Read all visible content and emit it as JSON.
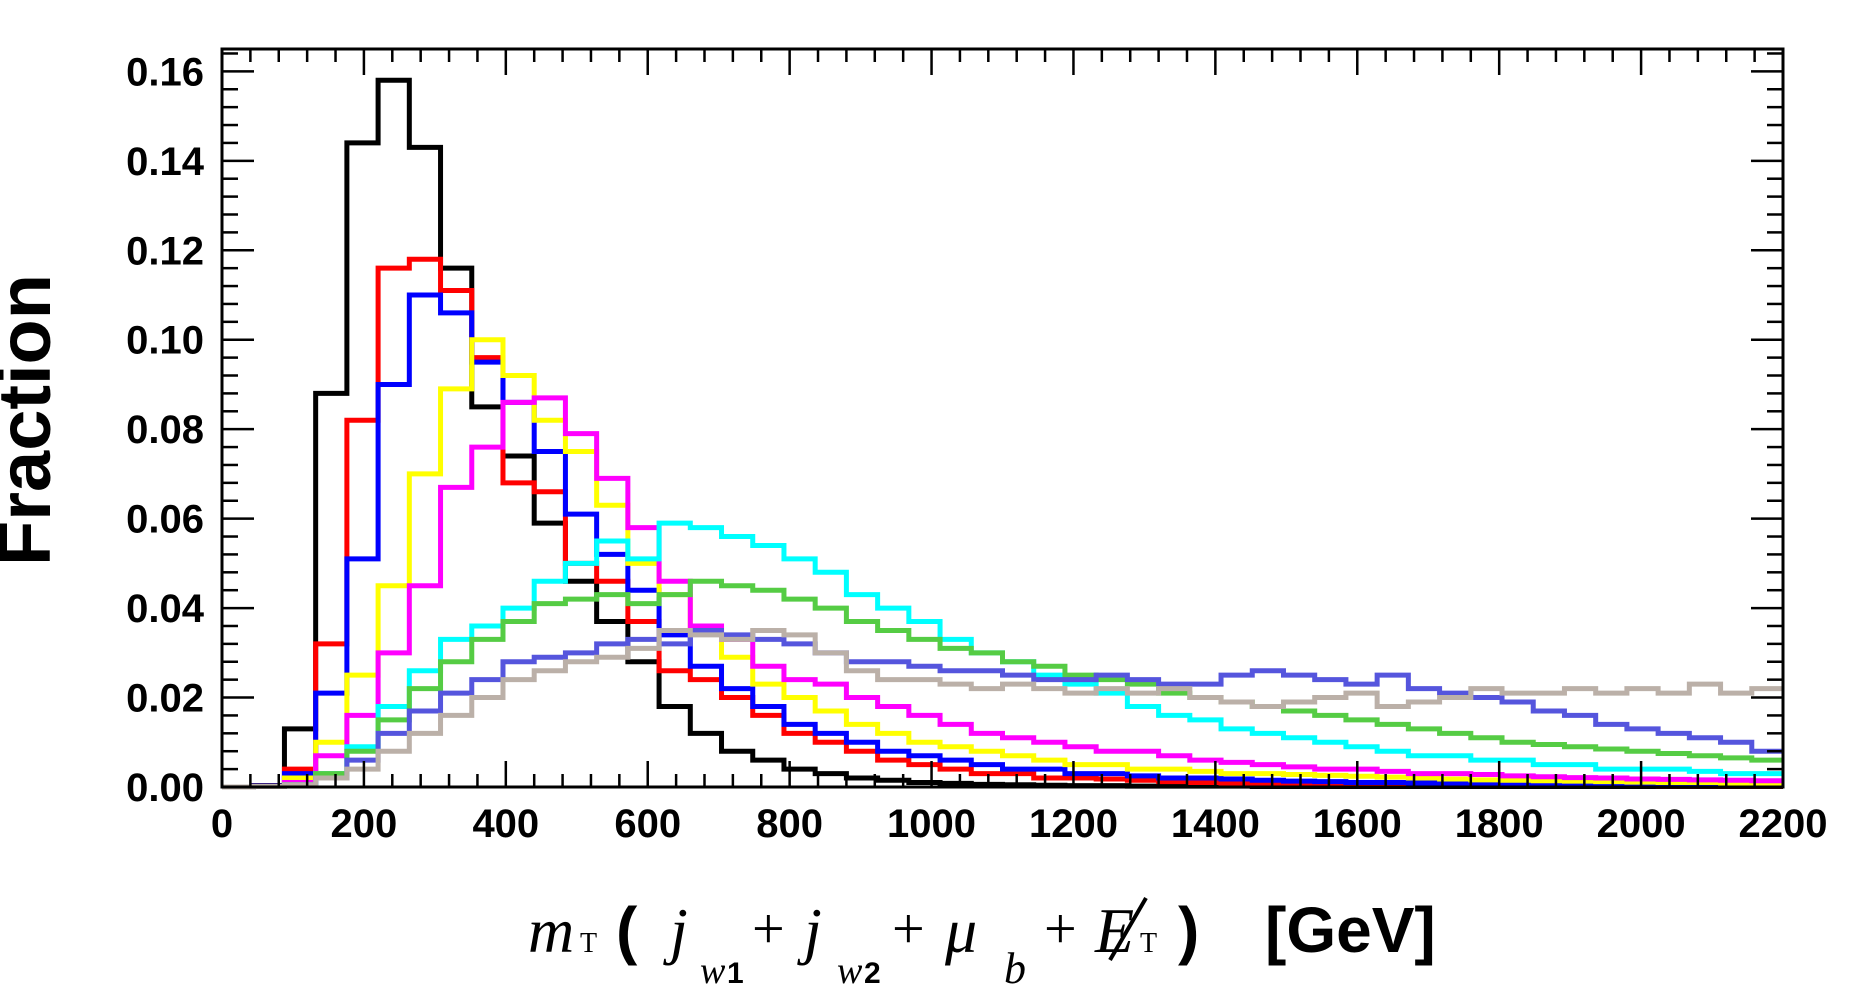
{
  "chart_data": {
    "type": "histogram-step",
    "title": "",
    "ylabel": "Fraction",
    "xlabel": {
      "full": "m_T ( j_w1 + j_w2 + μ_b + E̸_T ) [GeV]",
      "m": "m",
      "T1": "T",
      "paren_open": "(",
      "j1": "j",
      "w1": "w",
      "w1_num": "1",
      "plus1": "+",
      "j2": "j",
      "w2": "w",
      "w2_num": "2",
      "plus2": "+",
      "mu": "μ",
      "b": "b",
      "plus3": "+",
      "E": "E",
      "T2": "T",
      "paren_close": ")",
      "unit": "[GeV]"
    },
    "xlim": [
      0,
      2200
    ],
    "ylim": [
      0,
      0.165
    ],
    "x_ticks": [
      0,
      200,
      400,
      600,
      800,
      1000,
      1200,
      1400,
      1600,
      1800,
      2000,
      2200
    ],
    "x_tick_labels": [
      "0",
      "200",
      "400",
      "600",
      "800",
      "1000",
      "1200",
      "1400",
      "1600",
      "1800",
      "2000",
      "2200"
    ],
    "y_ticks": [
      0,
      0.02,
      0.04,
      0.06,
      0.08,
      0.1,
      0.12,
      0.14,
      0.16
    ],
    "y_tick_labels": [
      "0.00",
      "0.02",
      "0.04",
      "0.06",
      "0.08",
      "0.10",
      "0.12",
      "0.14",
      "0.16"
    ],
    "bin_edges_start": 0,
    "bin_width": 44,
    "series": [
      {
        "name": "black",
        "color": "#000000",
        "values": [
          0,
          0.0003,
          0.013,
          0.088,
          0.144,
          0.158,
          0.143,
          0.116,
          0.085,
          0.074,
          0.059,
          0.046,
          0.037,
          0.028,
          0.018,
          0.012,
          0.008,
          0.006,
          0.004,
          0.003,
          0.002,
          0.0015,
          0.001,
          0.0008,
          0.0006,
          0.0005,
          0.0004,
          0.0003,
          0.0003,
          0.0002,
          0.0002,
          0.0002,
          0.0002,
          0.0001,
          0.0001,
          0.0001,
          0.0001,
          0.0001,
          0.0001,
          0.0001,
          0.0001,
          0.0001,
          0.0001,
          0.0001,
          0.0001,
          0.0001,
          0.0001,
          0.0001,
          0.0001,
          0.0001
        ]
      },
      {
        "name": "red",
        "color": "#ff0000",
        "values": [
          0,
          0.0002,
          0.004,
          0.032,
          0.082,
          0.116,
          0.118,
          0.111,
          0.096,
          0.068,
          0.066,
          0.05,
          0.046,
          0.037,
          0.026,
          0.024,
          0.02,
          0.016,
          0.012,
          0.01,
          0.008,
          0.006,
          0.005,
          0.004,
          0.003,
          0.003,
          0.002,
          0.002,
          0.0018,
          0.0015,
          0.0012,
          0.001,
          0.0009,
          0.0008,
          0.0007,
          0.0006,
          0.0006,
          0.0005,
          0.0005,
          0.0004,
          0.0004,
          0.0004,
          0.0003,
          0.0003,
          0.0003,
          0.0003,
          0.0002,
          0.0002,
          0.0002,
          0.0002
        ]
      },
      {
        "name": "blue",
        "color": "#0000ff",
        "values": [
          0,
          0.0002,
          0.003,
          0.021,
          0.051,
          0.09,
          0.11,
          0.106,
          0.095,
          0.086,
          0.075,
          0.061,
          0.052,
          0.044,
          0.034,
          0.027,
          0.022,
          0.018,
          0.014,
          0.012,
          0.01,
          0.008,
          0.007,
          0.006,
          0.005,
          0.004,
          0.004,
          0.003,
          0.003,
          0.0025,
          0.002,
          0.002,
          0.0018,
          0.0015,
          0.0013,
          0.0012,
          0.001,
          0.001,
          0.0009,
          0.0008,
          0.0007,
          0.0007,
          0.0006,
          0.0006,
          0.0005,
          0.0005,
          0.0005,
          0.0004,
          0.0004,
          0.0004
        ]
      },
      {
        "name": "yellow",
        "color": "#ffff00",
        "values": [
          0,
          0.0001,
          0.002,
          0.01,
          0.025,
          0.045,
          0.07,
          0.089,
          0.1,
          0.092,
          0.082,
          0.075,
          0.063,
          0.05,
          0.043,
          0.036,
          0.029,
          0.023,
          0.02,
          0.017,
          0.014,
          0.012,
          0.01,
          0.009,
          0.008,
          0.007,
          0.006,
          0.005,
          0.005,
          0.004,
          0.004,
          0.0035,
          0.003,
          0.003,
          0.0028,
          0.0026,
          0.0024,
          0.0022,
          0.002,
          0.0018,
          0.0016,
          0.0015,
          0.0014,
          0.0013,
          0.0012,
          0.0011,
          0.001,
          0.001,
          0.0009,
          0.0009
        ]
      },
      {
        "name": "magenta",
        "color": "#ff00ff",
        "values": [
          0,
          0.0001,
          0.001,
          0.007,
          0.016,
          0.03,
          0.045,
          0.067,
          0.076,
          0.086,
          0.087,
          0.079,
          0.069,
          0.058,
          0.046,
          0.036,
          0.033,
          0.027,
          0.024,
          0.023,
          0.02,
          0.018,
          0.016,
          0.014,
          0.012,
          0.011,
          0.01,
          0.009,
          0.008,
          0.008,
          0.007,
          0.006,
          0.0055,
          0.005,
          0.0045,
          0.004,
          0.004,
          0.0035,
          0.003,
          0.003,
          0.0028,
          0.0025,
          0.0023,
          0.0021,
          0.002,
          0.0018,
          0.0017,
          0.0016,
          0.0015,
          0.0014
        ]
      },
      {
        "name": "cyan",
        "color": "#00ffff",
        "values": [
          0,
          0.0001,
          0.0005,
          0.003,
          0.009,
          0.018,
          0.026,
          0.033,
          0.036,
          0.04,
          0.046,
          0.05,
          0.055,
          0.051,
          0.059,
          0.058,
          0.056,
          0.054,
          0.051,
          0.048,
          0.043,
          0.04,
          0.037,
          0.033,
          0.03,
          0.028,
          0.025,
          0.023,
          0.021,
          0.018,
          0.016,
          0.015,
          0.013,
          0.012,
          0.011,
          0.01,
          0.009,
          0.008,
          0.007,
          0.007,
          0.006,
          0.006,
          0.005,
          0.005,
          0.004,
          0.004,
          0.004,
          0.0035,
          0.003,
          0.003
        ]
      },
      {
        "name": "green",
        "color": "#55cc44",
        "values": [
          0,
          0.0001,
          0.0005,
          0.003,
          0.008,
          0.015,
          0.022,
          0.028,
          0.033,
          0.037,
          0.041,
          0.042,
          0.043,
          0.041,
          0.043,
          0.046,
          0.045,
          0.044,
          0.042,
          0.04,
          0.037,
          0.035,
          0.033,
          0.031,
          0.03,
          0.028,
          0.027,
          0.025,
          0.024,
          0.023,
          0.021,
          0.02,
          0.019,
          0.018,
          0.017,
          0.016,
          0.015,
          0.014,
          0.013,
          0.012,
          0.011,
          0.01,
          0.0095,
          0.009,
          0.0085,
          0.008,
          0.0075,
          0.007,
          0.0065,
          0.006
        ]
      },
      {
        "name": "slateblue",
        "color": "#5555dd",
        "values": [
          0,
          0.0001,
          0.0005,
          0.002,
          0.006,
          0.012,
          0.017,
          0.021,
          0.024,
          0.028,
          0.029,
          0.03,
          0.032,
          0.033,
          0.032,
          0.035,
          0.034,
          0.033,
          0.032,
          0.03,
          0.028,
          0.028,
          0.027,
          0.026,
          0.026,
          0.025,
          0.024,
          0.024,
          0.025,
          0.024,
          0.023,
          0.023,
          0.025,
          0.026,
          0.025,
          0.024,
          0.023,
          0.025,
          0.022,
          0.021,
          0.02,
          0.019,
          0.017,
          0.016,
          0.014,
          0.013,
          0.012,
          0.011,
          0.01,
          0.008
        ]
      },
      {
        "name": "gray",
        "color": "#bbb0a8",
        "values": [
          0,
          0.0001,
          0.0005,
          0.002,
          0.004,
          0.008,
          0.012,
          0.016,
          0.02,
          0.024,
          0.026,
          0.028,
          0.029,
          0.031,
          0.035,
          0.034,
          0.033,
          0.035,
          0.034,
          0.03,
          0.026,
          0.024,
          0.024,
          0.023,
          0.022,
          0.023,
          0.022,
          0.021,
          0.022,
          0.021,
          0.022,
          0.02,
          0.019,
          0.018,
          0.019,
          0.02,
          0.021,
          0.018,
          0.019,
          0.02,
          0.022,
          0.021,
          0.021,
          0.022,
          0.021,
          0.022,
          0.021,
          0.023,
          0.021,
          0.022
        ]
      }
    ]
  }
}
